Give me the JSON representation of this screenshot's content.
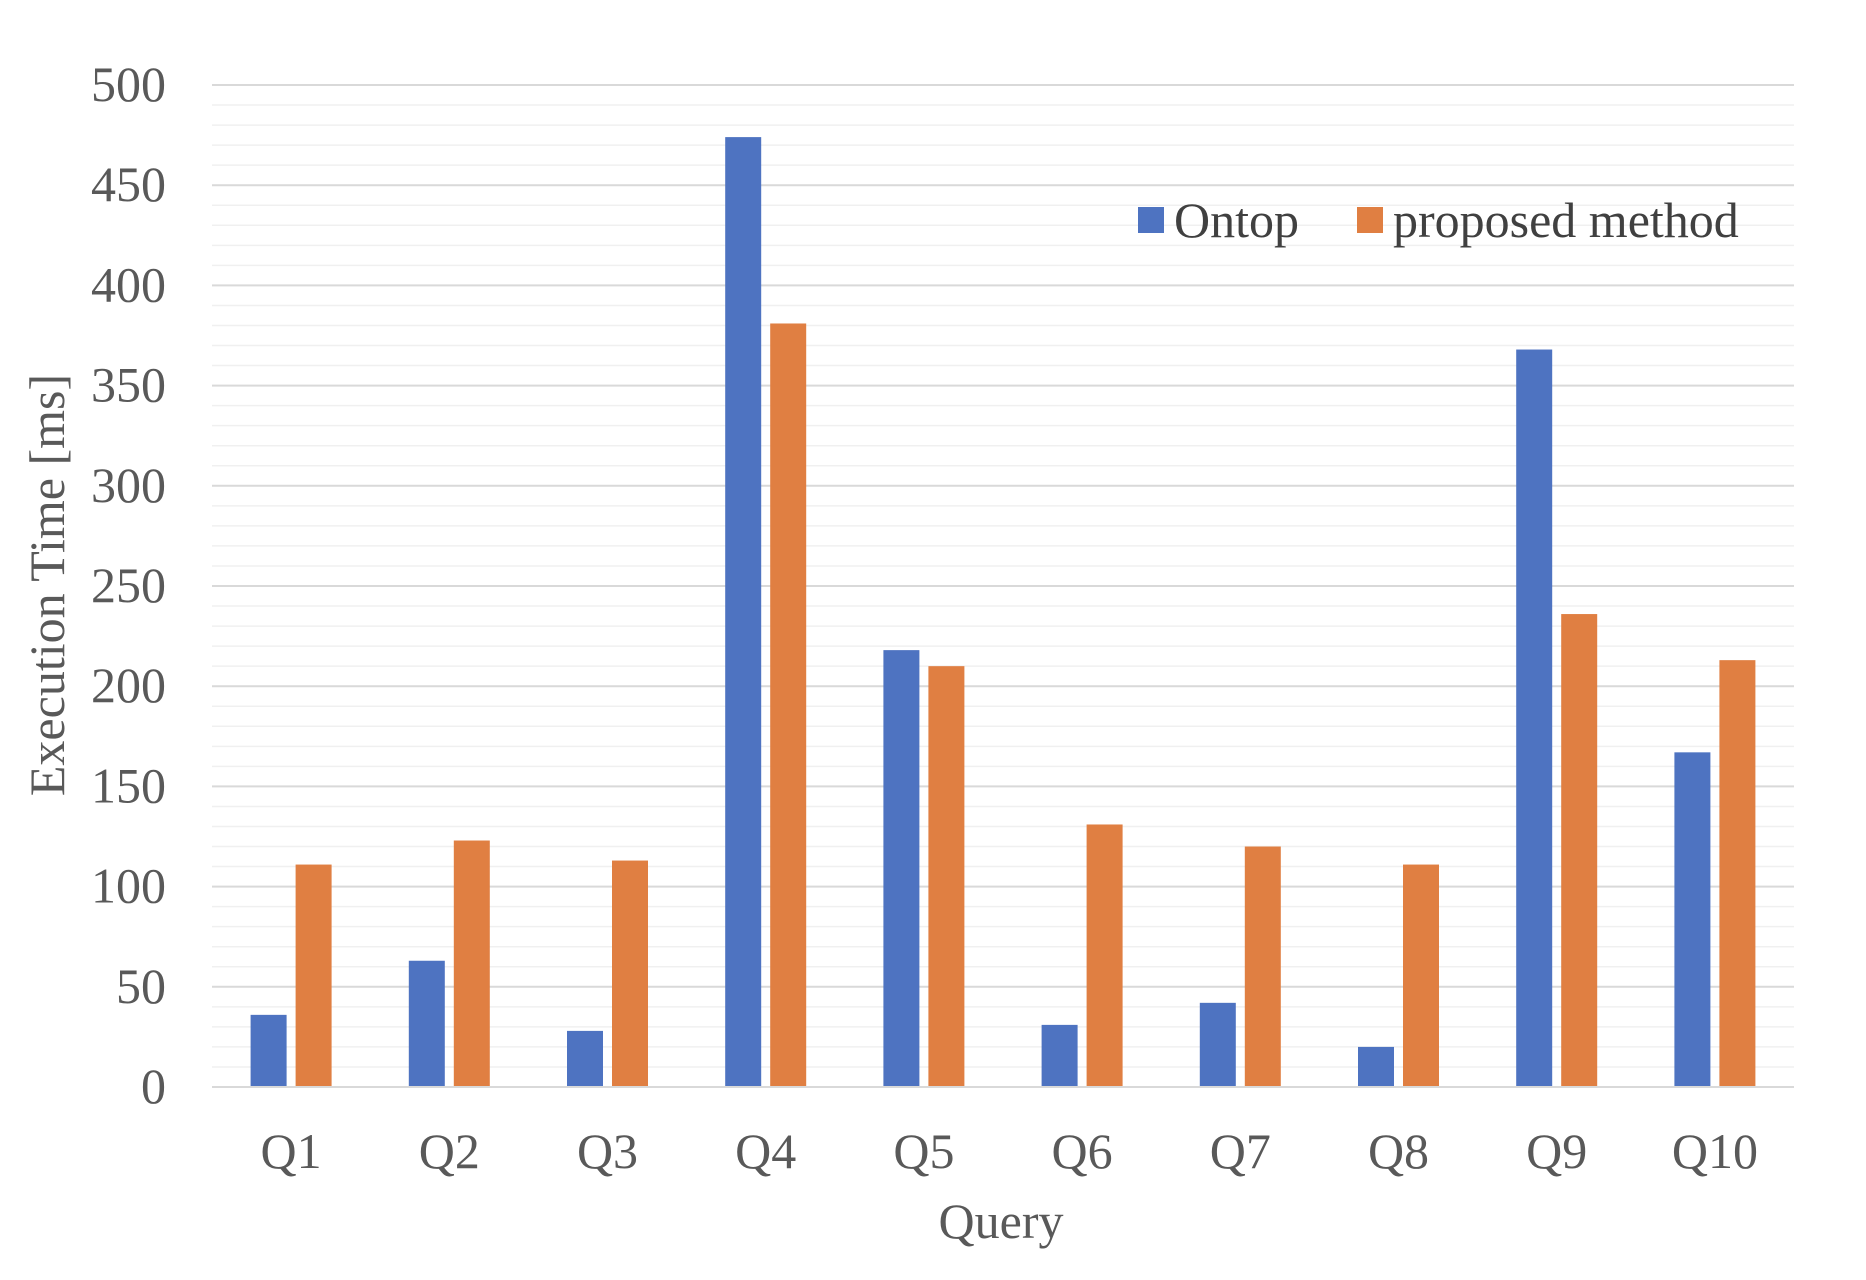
{
  "chart_data": {
    "type": "bar",
    "title": "",
    "xlabel": "Query",
    "ylabel": "Execution Time [ms]",
    "ylim": [
      0,
      500
    ],
    "ytick_step": 50,
    "minor_grid_step": 10,
    "grid": true,
    "legend_position": "top-right",
    "categories": [
      "Q1",
      "Q2",
      "Q3",
      "Q4",
      "Q5",
      "Q6",
      "Q7",
      "Q8",
      "Q9",
      "Q10"
    ],
    "series": [
      {
        "name": "Ontop",
        "color": "#4e73c1",
        "values": [
          36,
          63,
          28,
          474,
          218,
          31,
          42,
          20,
          368,
          167
        ]
      },
      {
        "name": "proposed method",
        "color": "#e07f42",
        "values": [
          111,
          123,
          113,
          381,
          210,
          131,
          120,
          111,
          236,
          213
        ]
      }
    ]
  }
}
